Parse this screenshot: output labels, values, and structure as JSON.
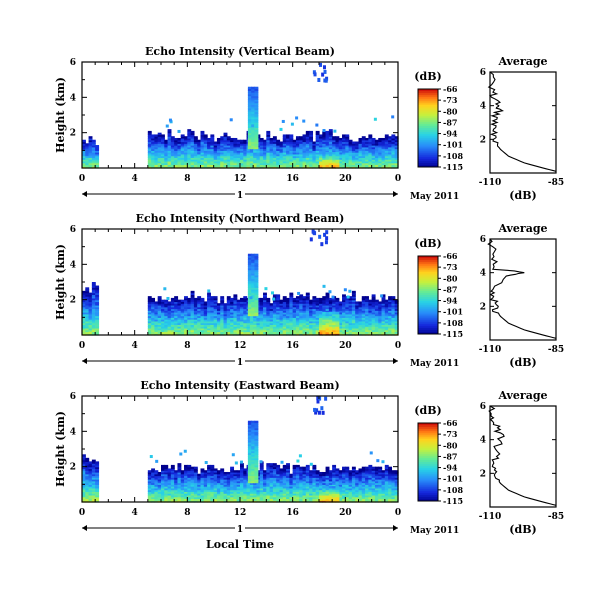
{
  "panels": [
    {
      "title": "Echo Intensity (Vertical Beam)",
      "ylabel": "Height (km)",
      "yticks": [
        "2",
        "4",
        "6"
      ],
      "xticks": [
        "0",
        "4",
        "8",
        "12",
        "16",
        "20",
        "0"
      ],
      "day_label": "1",
      "month_label": "May 2011",
      "colorbar": {
        "unit": "(dB)",
        "ticks": [
          "-66",
          "-73",
          "-80",
          "-87",
          "-94",
          "-101",
          "-108",
          "-115"
        ]
      },
      "average": {
        "title": "Average",
        "xticks": [
          "-110",
          "-85"
        ],
        "yticks": [
          "2",
          "4",
          "6"
        ],
        "xlabel": "(dB)"
      }
    },
    {
      "title": "Echo Intensity (Northward Beam)",
      "ylabel": "Height (km)",
      "yticks": [
        "2",
        "4",
        "6"
      ],
      "xticks": [
        "0",
        "4",
        "8",
        "12",
        "16",
        "20",
        "0"
      ],
      "day_label": "1",
      "month_label": "May 2011",
      "colorbar": {
        "unit": "(dB)",
        "ticks": [
          "-66",
          "-73",
          "-80",
          "-87",
          "-94",
          "-101",
          "-108",
          "-115"
        ]
      },
      "average": {
        "title": "Average",
        "xticks": [
          "-110",
          "-85"
        ],
        "yticks": [
          "2",
          "4",
          "6"
        ],
        "xlabel": "(dB)"
      }
    },
    {
      "title": "Echo Intensity (Eastward Beam)",
      "ylabel": "Height (km)",
      "yticks": [
        "2",
        "4",
        "6"
      ],
      "xticks": [
        "0",
        "4",
        "8",
        "12",
        "16",
        "20",
        "0"
      ],
      "day_label": "1",
      "month_label": "May 2011",
      "colorbar": {
        "unit": "(dB)",
        "ticks": [
          "-66",
          "-73",
          "-80",
          "-87",
          "-94",
          "-101",
          "-108",
          "-115"
        ]
      },
      "average": {
        "title": "Average",
        "xticks": [
          "-110",
          "-85"
        ],
        "yticks": [
          "2",
          "4",
          "6"
        ],
        "xlabel": "(dB)"
      }
    }
  ],
  "bottom_xlabel": "Local Time",
  "chart_data": [
    {
      "type": "heatmap",
      "title": "Echo Intensity (Vertical Beam)",
      "ylabel": "Height (km)",
      "xlabel": "Local Time",
      "xlim": [
        0,
        24
      ],
      "ylim": [
        0,
        6
      ],
      "clim": [
        -115,
        -66
      ],
      "colorbar_unit": "(dB)",
      "colormap": "jet",
      "echo_layers": [
        {
          "t_start": 0,
          "t_end": 1.2,
          "top_km": 1.6
        },
        {
          "t_start": 5,
          "t_end": 23.8,
          "top_km": 1.9
        },
        {
          "t_start": 12.6,
          "t_end": 13.2,
          "top_km": 4.6,
          "feature": "narrow vertical plume"
        },
        {
          "t_start": 18,
          "t_end": 19.5,
          "top_km": 0.8,
          "feature": "strong near-surface echo"
        }
      ],
      "average_profile": {
        "title": "Average",
        "xlabel": "(dB)",
        "xlim": [
          -110,
          -85
        ],
        "ylim": [
          0,
          6
        ],
        "x": [
          -85,
          -90,
          -97,
          -103,
          -106,
          -108,
          -108,
          -109,
          -108,
          -108,
          -106,
          -107,
          -108,
          -109,
          -109,
          -110
        ],
        "y": [
          0.1,
          0.3,
          0.6,
          1.0,
          1.4,
          1.8,
          2.2,
          2.6,
          3.0,
          3.4,
          3.8,
          4.0,
          4.4,
          4.8,
          5.4,
          6.0
        ]
      }
    },
    {
      "type": "heatmap",
      "title": "Echo Intensity (Northward Beam)",
      "ylabel": "Height (km)",
      "xlabel": "Local Time",
      "xlim": [
        0,
        24
      ],
      "ylim": [
        0,
        6
      ],
      "clim": [
        -115,
        -66
      ],
      "colorbar_unit": "(dB)",
      "colormap": "jet",
      "echo_layers": [
        {
          "t_start": 0,
          "t_end": 1.2,
          "top_km": 2.8
        },
        {
          "t_start": 5,
          "t_end": 23.8,
          "top_km": 2.2
        },
        {
          "t_start": 12.6,
          "t_end": 13.2,
          "top_km": 4.6,
          "feature": "narrow vertical plume"
        },
        {
          "t_start": 18,
          "t_end": 19.5,
          "top_km": 1.3,
          "feature": "strong near-surface echo"
        }
      ],
      "average_profile": {
        "title": "Average",
        "xlabel": "(dB)",
        "xlim": [
          -110,
          -85
        ],
        "ylim": [
          0,
          6
        ],
        "x": [
          -85,
          -90,
          -97,
          -103,
          -106,
          -108,
          -108,
          -109,
          -108,
          -104,
          -96,
          -108,
          -109,
          -109,
          -110
        ],
        "y": [
          0.1,
          0.3,
          0.6,
          1.0,
          1.4,
          1.8,
          2.2,
          2.6,
          3.0,
          3.8,
          4.0,
          4.2,
          4.8,
          5.4,
          6.0
        ]
      }
    },
    {
      "type": "heatmap",
      "title": "Echo Intensity (Eastward Beam)",
      "ylabel": "Height (km)",
      "xlabel": "Local Time",
      "xlim": [
        0,
        24
      ],
      "ylim": [
        0,
        6
      ],
      "clim": [
        -115,
        -66
      ],
      "colorbar_unit": "(dB)",
      "colormap": "jet",
      "echo_layers": [
        {
          "t_start": 0,
          "t_end": 1.2,
          "top_km": 2.5
        },
        {
          "t_start": 5,
          "t_end": 23.8,
          "top_km": 2.0
        },
        {
          "t_start": 12.6,
          "t_end": 13.2,
          "top_km": 4.6,
          "feature": "narrow vertical plume"
        },
        {
          "t_start": 18,
          "t_end": 19.5,
          "top_km": 0.8,
          "feature": "strong near-surface echo"
        }
      ],
      "average_profile": {
        "title": "Average",
        "xlabel": "(dB)",
        "xlim": [
          -110,
          -85
        ],
        "ylim": [
          0,
          6
        ],
        "x": [
          -85,
          -90,
          -97,
          -103,
          -106,
          -108,
          -108,
          -109,
          -108,
          -107,
          -106,
          -107,
          -108,
          -109,
          -110
        ],
        "y": [
          0.1,
          0.3,
          0.6,
          1.0,
          1.4,
          1.8,
          2.2,
          2.6,
          3.0,
          3.6,
          4.2,
          4.6,
          5.0,
          5.4,
          6.0
        ]
      }
    }
  ]
}
